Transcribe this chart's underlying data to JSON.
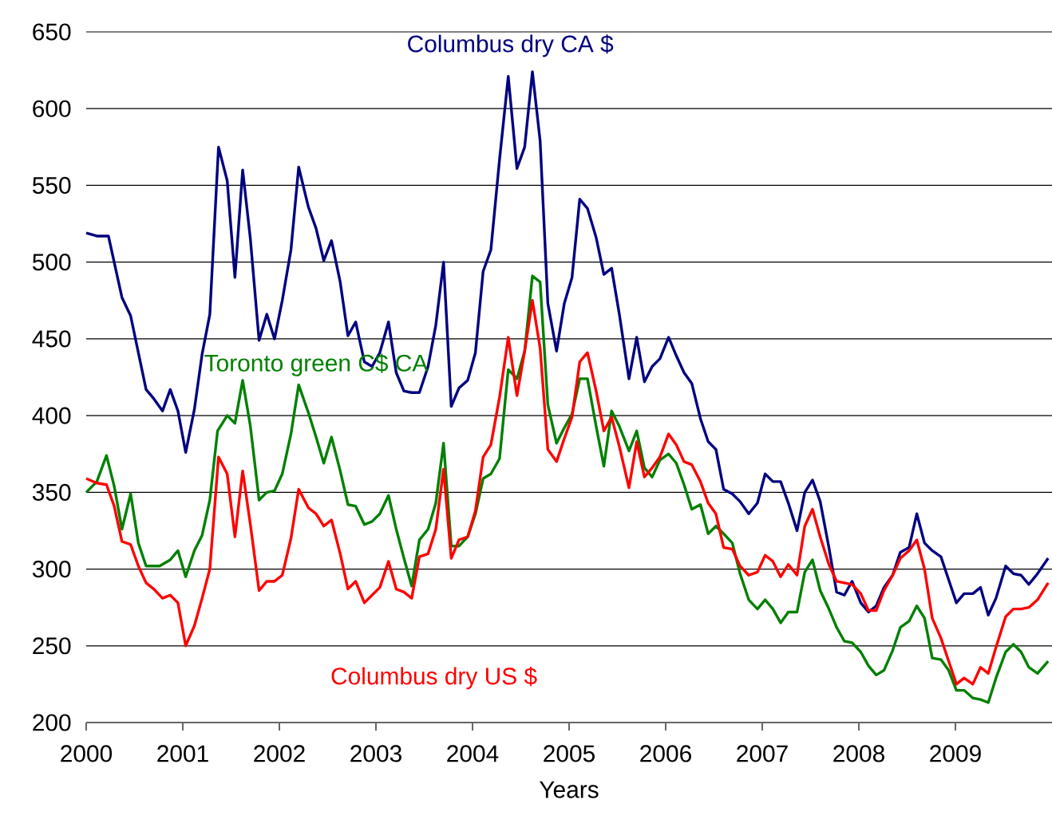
{
  "chart_data": {
    "type": "line",
    "xlabel": "Years",
    "xlim": [
      2000,
      2010
    ],
    "ylim": [
      200,
      650
    ],
    "xticks": [
      2000,
      2001,
      2002,
      2003,
      2004,
      2005,
      2006,
      2007,
      2008,
      2009
    ],
    "yticks": [
      200,
      250,
      300,
      350,
      400,
      450,
      500,
      550,
      600,
      650
    ],
    "grid": "y",
    "series": [
      {
        "name": "Columbus dry CA $",
        "color": "#000080",
        "x": [
          2000.0,
          2000.11,
          2000.23,
          2000.37,
          2000.46,
          2000.62,
          2000.7,
          2000.79,
          2000.87,
          2000.95,
          2001.03,
          2001.12,
          2001.2,
          2001.28,
          2001.37,
          2001.46,
          2001.54,
          2001.62,
          2001.7,
          2001.79,
          2001.87,
          2001.95,
          2002.03,
          2002.12,
          2002.2,
          2002.3,
          2002.38,
          2002.46,
          2002.54,
          2002.63,
          2002.71,
          2002.79,
          2002.88,
          2002.96,
          2003.04,
          2003.13,
          2003.21,
          2003.29,
          2003.37,
          2003.45,
          2003.54,
          2003.62,
          2003.7,
          2003.78,
          2003.86,
          2003.95,
          2004.03,
          2004.11,
          2004.19,
          2004.28,
          2004.37,
          2004.46,
          2004.54,
          2004.62,
          2004.7,
          2004.78,
          2004.87,
          2004.95,
          2005.03,
          2005.11,
          2005.19,
          2005.28,
          2005.36,
          2005.44,
          2005.52,
          2005.62,
          2005.7,
          2005.78,
          2005.86,
          2005.94,
          2006.03,
          2006.11,
          2006.19,
          2006.27,
          2006.36,
          2006.44,
          2006.52,
          2006.6,
          2006.69,
          2006.77,
          2006.86,
          2006.95,
          2007.03,
          2007.11,
          2007.19,
          2007.27,
          2007.36,
          2007.44,
          2007.52,
          2007.6,
          2007.69,
          2007.77,
          2007.85,
          2007.93,
          2008.02,
          2008.1,
          2008.18,
          2008.26,
          2008.35,
          2008.43,
          2008.52,
          2008.6,
          2008.68,
          2008.76,
          2008.85,
          2008.93,
          2009.01,
          2009.09,
          2009.18,
          2009.26,
          2009.34,
          2009.42,
          2009.52,
          2009.6,
          2009.68,
          2009.76,
          2009.85,
          2009.96
        ],
        "values": [
          519,
          517,
          517,
          477,
          465,
          417,
          411,
          403,
          417,
          403,
          376,
          404,
          440,
          466,
          575,
          553,
          490,
          560,
          515,
          449,
          466,
          450,
          475,
          508,
          562,
          536,
          522,
          501,
          514,
          487,
          452,
          461,
          435,
          432,
          441,
          461,
          428,
          416,
          415,
          415,
          432,
          459,
          500,
          406,
          418,
          423,
          441,
          494,
          508,
          567,
          621,
          561,
          575,
          624,
          579,
          473,
          442,
          473,
          490,
          541,
          535,
          516,
          492,
          496,
          466,
          424,
          451,
          422,
          432,
          437,
          451,
          439,
          428,
          421,
          398,
          383,
          378,
          352,
          349,
          344,
          336,
          343,
          362,
          357,
          357,
          343,
          325,
          350,
          358,
          344,
          314,
          285,
          283,
          292,
          278,
          272,
          276,
          288,
          296,
          311,
          314,
          336,
          317,
          312,
          308,
          293,
          278,
          284,
          284,
          288,
          270,
          281,
          302,
          297,
          296,
          290,
          297,
          307
        ]
      },
      {
        "name": "Toronto green C$ CA",
        "color": "#008000",
        "x": [
          2000.0,
          2000.11,
          2000.21,
          2000.29,
          2000.37,
          2000.46,
          2000.54,
          2000.62,
          2000.76,
          2000.87,
          2000.95,
          2001.03,
          2001.12,
          2001.2,
          2001.28,
          2001.36,
          2001.46,
          2001.54,
          2001.62,
          2001.7,
          2001.79,
          2001.87,
          2001.95,
          2002.03,
          2002.12,
          2002.2,
          2002.3,
          2002.38,
          2002.46,
          2002.54,
          2002.63,
          2002.71,
          2002.79,
          2002.88,
          2002.96,
          2003.04,
          2003.13,
          2003.21,
          2003.29,
          2003.37,
          2003.45,
          2003.54,
          2003.62,
          2003.7,
          2003.78,
          2003.86,
          2003.95,
          2004.03,
          2004.11,
          2004.19,
          2004.28,
          2004.37,
          2004.46,
          2004.54,
          2004.62,
          2004.7,
          2004.78,
          2004.87,
          2004.95,
          2005.03,
          2005.11,
          2005.19,
          2005.28,
          2005.36,
          2005.44,
          2005.52,
          2005.62,
          2005.7,
          2005.78,
          2005.86,
          2005.94,
          2006.03,
          2006.11,
          2006.19,
          2006.27,
          2006.36,
          2006.44,
          2006.52,
          2006.6,
          2006.69,
          2006.77,
          2006.86,
          2006.95,
          2007.03,
          2007.11,
          2007.19,
          2007.27,
          2007.36,
          2007.44,
          2007.52,
          2007.6,
          2007.69,
          2007.77,
          2007.85,
          2007.93,
          2008.02,
          2008.1,
          2008.18,
          2008.26,
          2008.35,
          2008.43,
          2008.52,
          2008.6,
          2008.68,
          2008.76,
          2008.85,
          2008.93,
          2009.01,
          2009.09,
          2009.18,
          2009.26,
          2009.34,
          2009.42,
          2009.52,
          2009.6,
          2009.68,
          2009.76,
          2009.85,
          2009.96
        ],
        "values": [
          350,
          357,
          374,
          354,
          326,
          349,
          317,
          302,
          302,
          306,
          312,
          295,
          312,
          322,
          345,
          390,
          400,
          395,
          423,
          393,
          345,
          350,
          351,
          362,
          388,
          420,
          402,
          386,
          369,
          386,
          364,
          342,
          341,
          329,
          331,
          336,
          348,
          326,
          307,
          289,
          319,
          326,
          343,
          382,
          315,
          315,
          321,
          336,
          359,
          362,
          372,
          430,
          424,
          442,
          491,
          487,
          407,
          382,
          392,
          401,
          424,
          424,
          393,
          367,
          403,
          393,
          377,
          390,
          366,
          360,
          371,
          375,
          369,
          355,
          339,
          342,
          323,
          328,
          323,
          317,
          297,
          280,
          274,
          280,
          274,
          265,
          272,
          272,
          298,
          306,
          286,
          274,
          262,
          253,
          252,
          246,
          237,
          231,
          234,
          247,
          262,
          266,
          276,
          268,
          242,
          241,
          234,
          221,
          221,
          216,
          215,
          213,
          229,
          246,
          251,
          246,
          236,
          232,
          240
        ]
      },
      {
        "name": "Columbus dry US $",
        "color": "#ff0000",
        "x": [
          2000.0,
          2000.11,
          2000.21,
          2000.29,
          2000.37,
          2000.46,
          2000.54,
          2000.62,
          2000.7,
          2000.79,
          2000.87,
          2000.95,
          2001.03,
          2001.12,
          2001.2,
          2001.28,
          2001.37,
          2001.46,
          2001.54,
          2001.62,
          2001.7,
          2001.79,
          2001.87,
          2001.95,
          2002.03,
          2002.12,
          2002.2,
          2002.3,
          2002.38,
          2002.46,
          2002.54,
          2002.63,
          2002.71,
          2002.79,
          2002.88,
          2002.96,
          2003.04,
          2003.13,
          2003.21,
          2003.29,
          2003.37,
          2003.45,
          2003.54,
          2003.62,
          2003.7,
          2003.78,
          2003.86,
          2003.95,
          2004.03,
          2004.11,
          2004.19,
          2004.28,
          2004.37,
          2004.46,
          2004.54,
          2004.62,
          2004.7,
          2004.78,
          2004.87,
          2004.95,
          2005.03,
          2005.11,
          2005.19,
          2005.28,
          2005.36,
          2005.44,
          2005.52,
          2005.62,
          2005.7,
          2005.78,
          2005.86,
          2005.94,
          2006.03,
          2006.11,
          2006.19,
          2006.27,
          2006.36,
          2006.44,
          2006.52,
          2006.6,
          2006.69,
          2006.77,
          2006.86,
          2006.95,
          2007.03,
          2007.11,
          2007.19,
          2007.27,
          2007.36,
          2007.44,
          2007.52,
          2007.6,
          2007.69,
          2007.77,
          2007.85,
          2007.93,
          2008.02,
          2008.1,
          2008.18,
          2008.26,
          2008.35,
          2008.43,
          2008.52,
          2008.6,
          2008.68,
          2008.76,
          2008.85,
          2008.93,
          2009.01,
          2009.09,
          2009.18,
          2009.26,
          2009.34,
          2009.42,
          2009.52,
          2009.6,
          2009.68,
          2009.76,
          2009.85,
          2009.96
        ],
        "values": [
          359,
          356,
          355,
          341,
          318,
          316,
          302,
          291,
          287,
          281,
          283,
          278,
          250,
          263,
          281,
          300,
          373,
          362,
          321,
          364,
          329,
          286,
          292,
          292,
          296,
          320,
          352,
          340,
          336,
          328,
          332,
          310,
          287,
          292,
          278,
          283,
          288,
          305,
          287,
          285,
          281,
          308,
          310,
          326,
          365,
          307,
          319,
          321,
          338,
          373,
          381,
          412,
          451,
          413,
          442,
          475,
          444,
          378,
          370,
          385,
          399,
          435,
          441,
          416,
          390,
          399,
          380,
          353,
          383,
          360,
          366,
          373,
          388,
          381,
          370,
          368,
          357,
          343,
          336,
          314,
          313,
          302,
          296,
          298,
          309,
          305,
          295,
          303,
          296,
          328,
          339,
          321,
          303,
          292,
          291,
          290,
          284,
          273,
          273,
          286,
          296,
          307,
          312,
          319,
          300,
          268,
          255,
          240,
          225,
          229,
          225,
          236,
          232,
          249,
          269,
          274,
          274,
          275,
          280,
          291
        ]
      }
    ]
  }
}
